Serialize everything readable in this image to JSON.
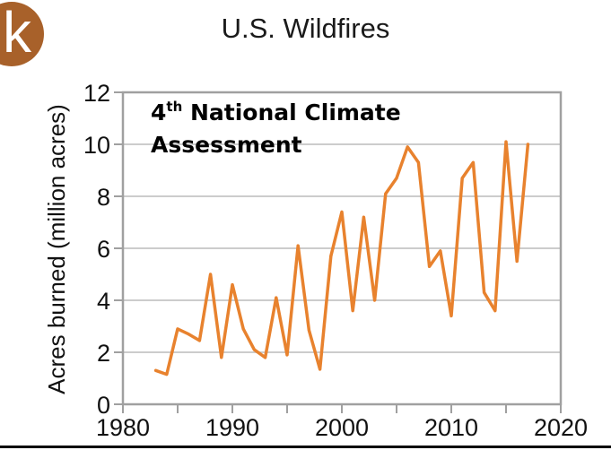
{
  "logo": {
    "letter": "k",
    "name": "k-logo"
  },
  "chart_data": {
    "type": "line",
    "title": "U.S. Wildfires",
    "xlabel": "",
    "ylabel": "Acres burned (million acres)",
    "annotation": {
      "main": "4",
      "sup": "th",
      "line1_rest": " National Climate",
      "line2": "Assessment"
    },
    "xlim": [
      1980,
      2020
    ],
    "ylim": [
      0,
      12
    ],
    "x_ticks": [
      1980,
      1985,
      1990,
      1995,
      2000,
      2005,
      2010,
      2015,
      2020
    ],
    "x_tick_labels": [
      "1980",
      "",
      "1990",
      "",
      "2000",
      "",
      "2010",
      "",
      "2020"
    ],
    "y_ticks": [
      0,
      2,
      4,
      6,
      8,
      10,
      12
    ],
    "y_tick_labels": [
      "0",
      "2",
      "4",
      "6",
      "8",
      "10",
      "12"
    ],
    "grid": true,
    "legend": "none",
    "series": [
      {
        "name": "Acres burned",
        "color": "#e8822e",
        "x": [
          1983,
          1984,
          1985,
          1986,
          1987,
          1988,
          1989,
          1990,
          1991,
          1992,
          1993,
          1994,
          1995,
          1996,
          1997,
          1998,
          1999,
          2000,
          2001,
          2002,
          2003,
          2004,
          2005,
          2006,
          2007,
          2008,
          2009,
          2010,
          2011,
          2012,
          2013,
          2014,
          2015,
          2016,
          2017
        ],
        "values": [
          1.3,
          1.15,
          2.9,
          2.7,
          2.45,
          5.0,
          1.8,
          4.6,
          2.9,
          2.1,
          1.8,
          4.1,
          1.9,
          6.1,
          2.85,
          1.35,
          5.7,
          7.4,
          3.6,
          7.2,
          4.0,
          8.1,
          8.7,
          9.9,
          9.3,
          5.3,
          5.9,
          3.4,
          8.7,
          9.3,
          4.3,
          3.6,
          10.1,
          5.5,
          10.0
        ]
      }
    ]
  },
  "colors": {
    "logo": "#a8612a",
    "line": "#e8822e",
    "axis": "#a0a0a0",
    "grid": "#cccccc"
  }
}
